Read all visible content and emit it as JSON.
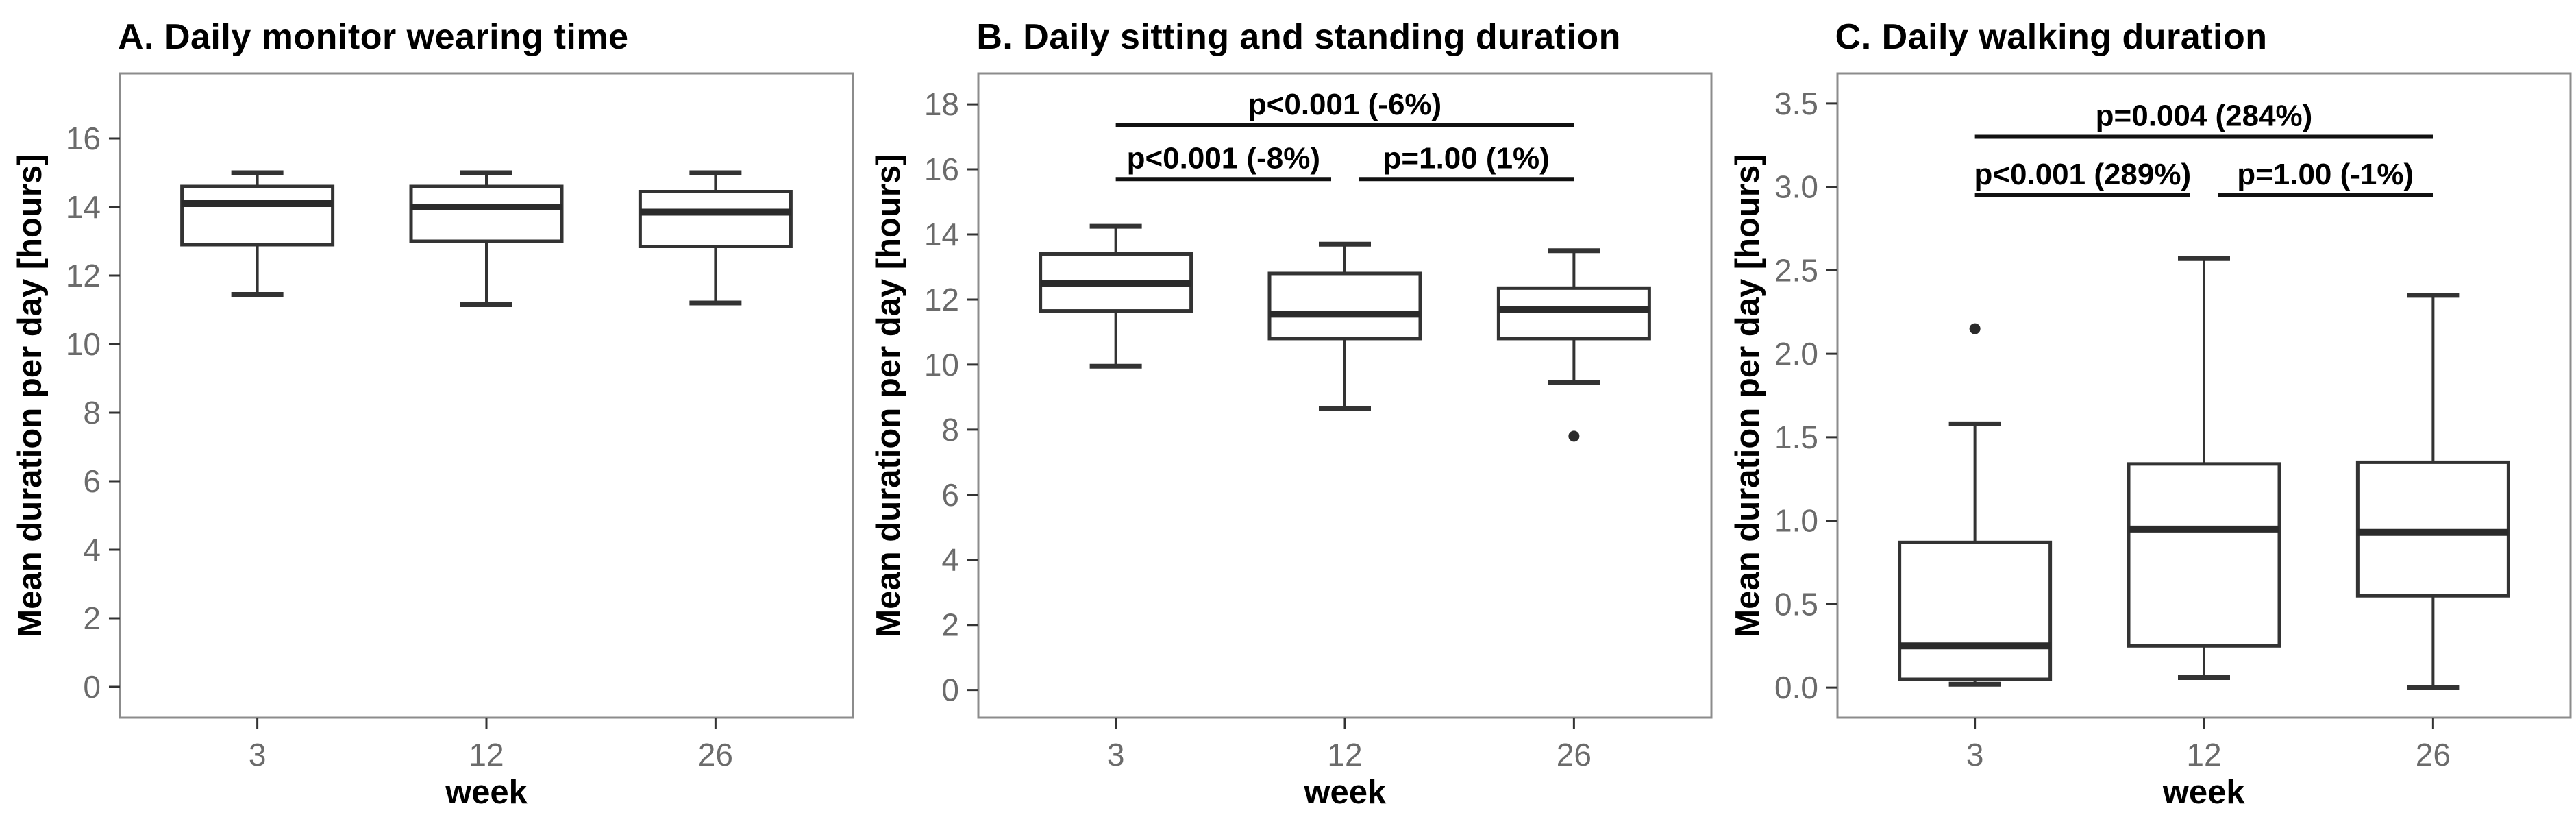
{
  "figure": {
    "background": "#ffffff",
    "panel_count": 3
  },
  "style": {
    "box_stroke": "#333333",
    "median_stroke": "#2b2b2b",
    "outlier_fill": "#2b2b2b",
    "panel_border": "#8c8c8c",
    "tick_color": "#333333",
    "tick_label_color": "#6b6b6b",
    "annotation_color": "#111111",
    "text_color": "#000000",
    "box_fill": "#ffffff"
  },
  "chart_data": [
    {
      "type": "boxplot",
      "title": "A. Daily monitor wearing time",
      "xlabel": "week",
      "ylabel": "Mean duration per day [hours]",
      "categories": [
        "3",
        "12",
        "26"
      ],
      "ylim": [
        -0.9,
        17.9
      ],
      "grid": "off",
      "ytick_values": [
        0,
        2,
        4,
        6,
        8,
        10,
        12,
        14,
        16
      ],
      "ytick_labels": [
        "0",
        "2",
        "4",
        "6",
        "8",
        "10",
        "12",
        "14",
        "16"
      ],
      "boxes": [
        {
          "category": "3",
          "whisker_low": 11.45,
          "q1": 12.9,
          "median": 14.1,
          "q3": 14.6,
          "whisker_high": 15.0,
          "outliers": []
        },
        {
          "category": "12",
          "whisker_low": 11.15,
          "q1": 13.0,
          "median": 14.0,
          "q3": 14.6,
          "whisker_high": 15.0,
          "outliers": []
        },
        {
          "category": "26",
          "whisker_low": 11.2,
          "q1": 12.85,
          "median": 13.85,
          "q3": 14.45,
          "whisker_high": 15.0,
          "outliers": []
        }
      ],
      "annotations": []
    },
    {
      "type": "boxplot",
      "title": "B. Daily sitting and standing duration",
      "xlabel": "week",
      "ylabel": "Mean duration per day [hours]",
      "categories": [
        "3",
        "12",
        "26"
      ],
      "ylim": [
        -0.85,
        18.95
      ],
      "grid": "off",
      "ytick_values": [
        0,
        2,
        4,
        6,
        8,
        10,
        12,
        14,
        16,
        18
      ],
      "ytick_labels": [
        "0",
        "2",
        "4",
        "6",
        "8",
        "10",
        "12",
        "14",
        "16",
        "18"
      ],
      "boxes": [
        {
          "category": "3",
          "whisker_low": 9.95,
          "q1": 11.65,
          "median": 12.5,
          "q3": 13.4,
          "whisker_high": 14.25,
          "outliers": []
        },
        {
          "category": "12",
          "whisker_low": 8.65,
          "q1": 10.8,
          "median": 11.55,
          "q3": 12.8,
          "whisker_high": 13.7,
          "outliers": []
        },
        {
          "category": "26",
          "whisker_low": 9.45,
          "q1": 10.8,
          "median": 11.7,
          "q3": 12.35,
          "whisker_high": 13.5,
          "outliers": [
            7.8
          ]
        }
      ],
      "annotations": [
        {
          "label": "p<0.001 (-6%)",
          "from_cat": 0,
          "to_cat": 2,
          "line_y": 17.35
        },
        {
          "label": "p<0.001 (-8%)",
          "from_cat": 0,
          "to_cat": 1,
          "line_y": 15.7
        },
        {
          "label": "p=1.00 (1%)",
          "from_cat": 1,
          "to_cat": 2,
          "line_y": 15.7
        }
      ]
    },
    {
      "type": "boxplot",
      "title": "C. Daily walking duration",
      "xlabel": "week",
      "ylabel": "Mean duration per day [hours]",
      "categories": [
        "3",
        "12",
        "26"
      ],
      "ylim": [
        -0.18,
        3.68
      ],
      "grid": "off",
      "ytick_values": [
        0.0,
        0.5,
        1.0,
        1.5,
        2.0,
        2.5,
        3.0,
        3.5
      ],
      "ytick_labels": [
        "0.0",
        "0.5",
        "1.0",
        "1.5",
        "2.0",
        "2.5",
        "3.0",
        "3.5"
      ],
      "boxes": [
        {
          "category": "3",
          "whisker_low": 0.02,
          "q1": 0.05,
          "median": 0.25,
          "q3": 0.87,
          "whisker_high": 1.58,
          "outliers": [
            2.15
          ]
        },
        {
          "category": "12",
          "whisker_low": 0.06,
          "q1": 0.25,
          "median": 0.95,
          "q3": 1.34,
          "whisker_high": 2.57,
          "outliers": []
        },
        {
          "category": "26",
          "whisker_low": 0.0,
          "q1": 0.55,
          "median": 0.93,
          "q3": 1.35,
          "whisker_high": 2.35,
          "outliers": []
        }
      ],
      "annotations": [
        {
          "label": "p=0.004 (284%)",
          "from_cat": 0,
          "to_cat": 2,
          "line_y": 3.3
        },
        {
          "label": "p<0.001 (289%)",
          "from_cat": 0,
          "to_cat": 1,
          "line_y": 2.95
        },
        {
          "label": "p=1.00 (-1%)",
          "from_cat": 1,
          "to_cat": 2,
          "line_y": 2.95
        }
      ]
    }
  ]
}
